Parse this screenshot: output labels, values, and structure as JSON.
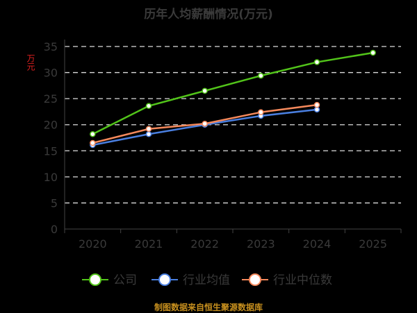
{
  "chart_data": {
    "type": "line",
    "title": "历年人均薪酬情况(万元)",
    "ylabel": "万元",
    "xlabel": "",
    "categories": [
      "2020",
      "2021",
      "2022",
      "2023",
      "2024",
      "2025"
    ],
    "ylim": [
      0,
      35
    ],
    "yticks": [
      0,
      5,
      10,
      15,
      20,
      25,
      30,
      35
    ],
    "grid": true,
    "legend_position": "bottom",
    "series": [
      {
        "name": "公司",
        "color": "#52c41a",
        "values": [
          18.2,
          23.6,
          26.5,
          29.4,
          32.0,
          33.8
        ]
      },
      {
        "name": "行业均值",
        "color": "#4a7fe0",
        "values": [
          16.1,
          18.2,
          20.0,
          21.7,
          22.9,
          null
        ]
      },
      {
        "name": "行业中位数",
        "color": "#f5895c",
        "values": [
          16.5,
          19.2,
          20.2,
          22.4,
          23.8,
          null
        ]
      }
    ]
  },
  "source": "制图数据来自恒生聚源数据库"
}
